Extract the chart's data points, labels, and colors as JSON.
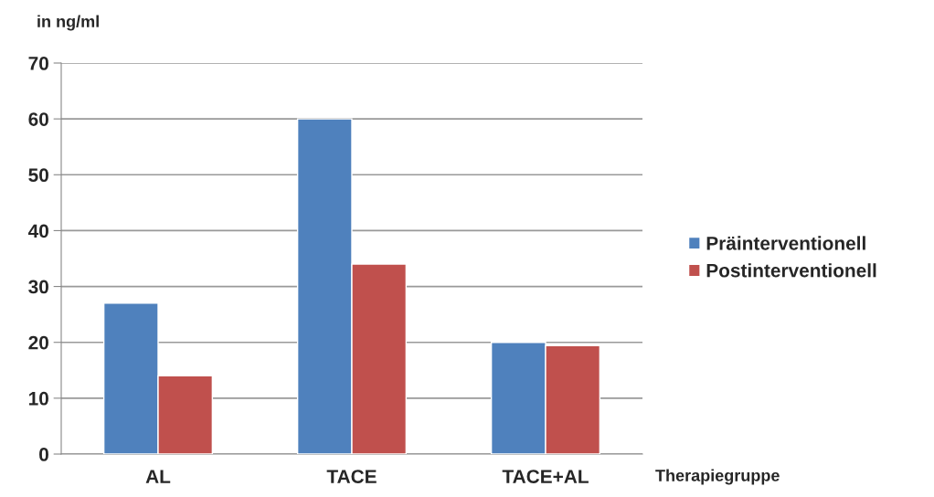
{
  "chart_data": {
    "type": "bar",
    "ylabel": "in ng/ml",
    "xlabel": "Therapiegruppe",
    "categories": [
      "AL",
      "TACE",
      "TACE+AL"
    ],
    "series": [
      {
        "name": "Präinterventionell",
        "color": "#4f81bd",
        "values": [
          27,
          60,
          20
        ]
      },
      {
        "name": "Postinterventionell",
        "color": "#c0504d",
        "values": [
          14,
          34,
          19.4
        ]
      }
    ],
    "ylim": [
      0,
      70
    ],
    "yticks": [
      0,
      10,
      20,
      30,
      40,
      50,
      60,
      70
    ],
    "grid": "y",
    "legend": "right"
  }
}
